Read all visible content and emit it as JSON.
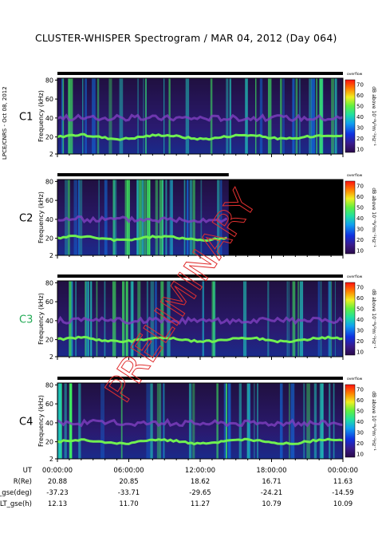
{
  "title": "CLUSTER-WHISPER Spectrogram / MAR 04, 2012 (Day 064)",
  "side_note": "LPCE/CNRS - Oct 08, 2012",
  "watermark": "PRELIMINARY",
  "chart_data": [
    {
      "type": "heatmap",
      "panel": "C1",
      "ylabel": "Frequency (kHz)",
      "yticks": [
        "2",
        "20",
        "40",
        "60",
        "80"
      ],
      "ylim": [
        2,
        82
      ],
      "colorbar_label": "dB above 10⁻⁸V²m⁻²Hz⁻¹",
      "colorbar_corner": "overflow",
      "colorbar_ticks": [
        "10",
        "20",
        "30",
        "40",
        "50",
        "60",
        "70"
      ],
      "data_coverage_hours": [
        0,
        24
      ]
    },
    {
      "type": "heatmap",
      "panel": "C2",
      "ylabel": "Frequency (kHz)",
      "yticks": [
        "2",
        "20",
        "40",
        "60",
        "80"
      ],
      "ylim": [
        2,
        82
      ],
      "colorbar_label": "dB above 10⁻⁸V²m⁻²Hz⁻¹",
      "colorbar_corner": "overflow",
      "colorbar_ticks": [
        "10",
        "20",
        "30",
        "40",
        "50",
        "60",
        "70"
      ],
      "data_coverage_hours": [
        0,
        14.4
      ]
    },
    {
      "type": "heatmap",
      "panel": "C3",
      "ylabel": "Frequency (kHz)",
      "yticks": [
        "2",
        "20",
        "40",
        "60",
        "80"
      ],
      "ylim": [
        2,
        82
      ],
      "colorbar_label": "dB above 10⁻⁸V²m⁻²Hz⁻¹",
      "colorbar_corner": "overflow",
      "colorbar_ticks": [
        "10",
        "20",
        "30",
        "40",
        "50",
        "60",
        "70"
      ],
      "data_coverage_hours": [
        0,
        24
      ]
    },
    {
      "type": "heatmap",
      "panel": "C4",
      "ylabel": "Frequency (kHz)",
      "yticks": [
        "2",
        "20",
        "40",
        "60",
        "80"
      ],
      "ylim": [
        2,
        82
      ],
      "colorbar_label": "dB above 10⁻⁸V²m⁻²Hz⁻¹",
      "colorbar_corner": "overflow",
      "colorbar_ticks": [
        "10",
        "20",
        "30",
        "40",
        "50",
        "60",
        "70"
      ],
      "data_coverage_hours": [
        0,
        24
      ]
    }
  ],
  "xaxis": {
    "ticks": [
      "00:00:00",
      "06:00:00",
      "12:00:00",
      "18:00:00",
      "00:00:00"
    ]
  },
  "ephemeris": [
    {
      "label": "UT",
      "values": []
    },
    {
      "label": "R(Re)",
      "values": [
        "20.88",
        "20.85",
        "18.62",
        "16.71",
        "11.63"
      ]
    },
    {
      "label": "Lat_gse(deg)",
      "values": [
        "-37.23",
        "-33.71",
        "-29.65",
        "-24.21",
        "-14.59"
      ]
    },
    {
      "label": "LT_gse(h)",
      "values": [
        "12.13",
        "11.70",
        "11.27",
        "10.79",
        "10.09"
      ]
    }
  ],
  "colors": {
    "c3_label": "#22aa55",
    "c_label": "#000000",
    "watermark": "#e03030",
    "frame_bg": "#000000"
  }
}
